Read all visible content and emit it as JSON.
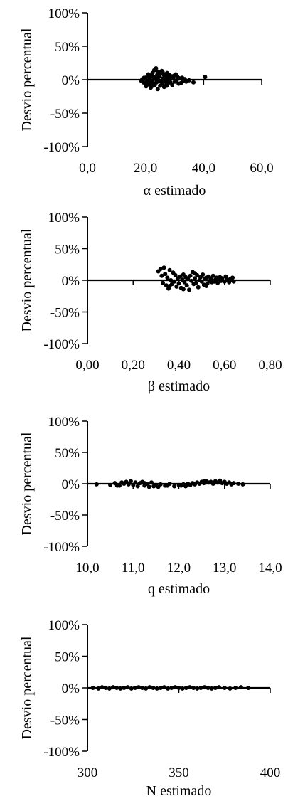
{
  "chart_data": [
    {
      "type": "scatter",
      "xlabel": "α estimado",
      "ylabel": "Desvio percentual",
      "xlim": [
        0,
        60
      ],
      "ylim": [
        -100,
        100
      ],
      "x_ticks": [
        "0,0",
        "20,0",
        "40,0",
        "60,0"
      ],
      "y_ticks": [
        "100%",
        "50%",
        "0%",
        "-50%",
        "-100%"
      ],
      "points": [
        [
          18.6,
          -2
        ],
        [
          18.9,
          1
        ],
        [
          19.2,
          -4
        ],
        [
          19.5,
          3
        ],
        [
          19.8,
          -6
        ],
        [
          20.0,
          2
        ],
        [
          20.2,
          -10
        ],
        [
          20.4,
          -1
        ],
        [
          20.6,
          5
        ],
        [
          20.8,
          -3
        ],
        [
          21.0,
          8
        ],
        [
          21.2,
          -7
        ],
        [
          21.4,
          0
        ],
        [
          21.6,
          4
        ],
        [
          21.8,
          -12
        ],
        [
          22.0,
          6
        ],
        [
          22.2,
          -2
        ],
        [
          22.4,
          10
        ],
        [
          22.6,
          -5
        ],
        [
          22.8,
          3
        ],
        [
          23.0,
          14
        ],
        [
          23.2,
          -8
        ],
        [
          23.4,
          1
        ],
        [
          23.6,
          17
        ],
        [
          23.8,
          -4
        ],
        [
          24.0,
          7
        ],
        [
          24.2,
          -14
        ],
        [
          24.4,
          12
        ],
        [
          24.6,
          -1
        ],
        [
          24.8,
          5
        ],
        [
          25.0,
          -9
        ],
        [
          25.2,
          9
        ],
        [
          25.4,
          -3
        ],
        [
          25.6,
          13
        ],
        [
          25.8,
          -6
        ],
        [
          26.0,
          2
        ],
        [
          26.2,
          8
        ],
        [
          26.4,
          -11
        ],
        [
          26.6,
          4
        ],
        [
          26.8,
          -2
        ],
        [
          27.0,
          6
        ],
        [
          27.2,
          -7
        ],
        [
          27.4,
          10
        ],
        [
          27.6,
          0
        ],
        [
          27.8,
          -5
        ],
        [
          28.0,
          3
        ],
        [
          28.3,
          7
        ],
        [
          28.6,
          -4
        ],
        [
          28.9,
          5
        ],
        [
          29.2,
          -8
        ],
        [
          29.5,
          2
        ],
        [
          29.8,
          6
        ],
        [
          30.1,
          -3
        ],
        [
          30.4,
          8
        ],
        [
          30.7,
          -1
        ],
        [
          31.0,
          4
        ],
        [
          31.4,
          -6
        ],
        [
          31.8,
          2
        ],
        [
          32.2,
          -5
        ],
        [
          32.6,
          3
        ],
        [
          33.0,
          -2
        ],
        [
          33.5,
          1
        ],
        [
          34.0,
          -3
        ],
        [
          35.0,
          -1
        ],
        [
          36.5,
          -4
        ],
        [
          40.5,
          4
        ],
        [
          21.5,
          -5
        ],
        [
          23.1,
          4
        ],
        [
          25.9,
          11
        ],
        [
          27.3,
          -9
        ],
        [
          24.1,
          2
        ],
        [
          22.7,
          -9
        ]
      ]
    },
    {
      "type": "scatter",
      "xlabel": "β estimado",
      "ylabel": "Desvio percentual",
      "xlim": [
        0,
        0.8
      ],
      "ylim": [
        -100,
        100
      ],
      "x_ticks": [
        "0,00",
        "0,20",
        "0,40",
        "0,60",
        "0,80"
      ],
      "y_ticks": [
        "100%",
        "50%",
        "0%",
        "-50%",
        "-100%"
      ],
      "points": [
        [
          0.31,
          14
        ],
        [
          0.32,
          18
        ],
        [
          0.325,
          7
        ],
        [
          0.33,
          -4
        ],
        [
          0.335,
          20
        ],
        [
          0.34,
          10
        ],
        [
          0.345,
          -8
        ],
        [
          0.35,
          4
        ],
        [
          0.355,
          -13
        ],
        [
          0.36,
          16
        ],
        [
          0.365,
          0
        ],
        [
          0.37,
          -6
        ],
        [
          0.375,
          12
        ],
        [
          0.38,
          -2
        ],
        [
          0.385,
          8
        ],
        [
          0.39,
          -10
        ],
        [
          0.395,
          3
        ],
        [
          0.4,
          -5
        ],
        [
          0.405,
          6
        ],
        [
          0.41,
          -12
        ],
        [
          0.415,
          1
        ],
        [
          0.42,
          9
        ],
        [
          0.425,
          -3
        ],
        [
          0.43,
          5
        ],
        [
          0.435,
          -8
        ],
        [
          0.44,
          2
        ],
        [
          0.445,
          -15
        ],
        [
          0.45,
          7
        ],
        [
          0.455,
          -1
        ],
        [
          0.46,
          13
        ],
        [
          0.465,
          -6
        ],
        [
          0.47,
          3
        ],
        [
          0.475,
          -4
        ],
        [
          0.48,
          8
        ],
        [
          0.485,
          -11
        ],
        [
          0.49,
          0
        ],
        [
          0.495,
          5
        ],
        [
          0.5,
          -2
        ],
        [
          0.505,
          9
        ],
        [
          0.51,
          -7
        ],
        [
          0.515,
          2
        ],
        [
          0.52,
          4
        ],
        [
          0.525,
          -5
        ],
        [
          0.53,
          6
        ],
        [
          0.535,
          -1
        ],
        [
          0.54,
          3
        ],
        [
          0.545,
          -3
        ],
        [
          0.55,
          7
        ],
        [
          0.555,
          -2
        ],
        [
          0.56,
          1
        ],
        [
          0.565,
          4
        ],
        [
          0.57,
          -4
        ],
        [
          0.575,
          2
        ],
        [
          0.58,
          5
        ],
        [
          0.585,
          -1
        ],
        [
          0.59,
          3
        ],
        [
          0.6,
          -2
        ],
        [
          0.605,
          6
        ],
        [
          0.61,
          1
        ],
        [
          0.62,
          -3
        ],
        [
          0.625,
          2
        ],
        [
          0.63,
          0
        ],
        [
          0.635,
          4
        ],
        [
          0.64,
          -2
        ],
        [
          0.36,
          -9
        ],
        [
          0.42,
          -14
        ],
        [
          0.47,
          11
        ],
        [
          0.52,
          -9
        ]
      ]
    },
    {
      "type": "scatter",
      "xlabel": "q estimado",
      "ylabel": "Desvio percentual",
      "xlim": [
        10,
        14
      ],
      "ylim": [
        -100,
        100
      ],
      "x_ticks": [
        "10,0",
        "11,0",
        "12,0",
        "13,0",
        "14,0"
      ],
      "y_ticks": [
        "100%",
        "50%",
        "0%",
        "-50%",
        "-100%"
      ],
      "points": [
        [
          10.2,
          -1
        ],
        [
          10.5,
          -2
        ],
        [
          10.6,
          1
        ],
        [
          10.7,
          -3
        ],
        [
          10.75,
          2
        ],
        [
          10.8,
          0
        ],
        [
          10.85,
          3
        ],
        [
          10.9,
          -1
        ],
        [
          10.95,
          4
        ],
        [
          11.0,
          -2
        ],
        [
          11.05,
          2
        ],
        [
          11.1,
          -4
        ],
        [
          11.15,
          1
        ],
        [
          11.2,
          3
        ],
        [
          11.25,
          -3
        ],
        [
          11.3,
          0
        ],
        [
          11.35,
          -5
        ],
        [
          11.4,
          2
        ],
        [
          11.45,
          -4
        ],
        [
          11.5,
          -2
        ],
        [
          11.55,
          -5
        ],
        [
          11.6,
          -1
        ],
        [
          11.7,
          -3
        ],
        [
          11.8,
          0
        ],
        [
          11.9,
          -4
        ],
        [
          12.0,
          -2
        ],
        [
          12.05,
          -3
        ],
        [
          12.1,
          -1
        ],
        [
          12.15,
          -4
        ],
        [
          12.2,
          0
        ],
        [
          12.25,
          -2
        ],
        [
          12.3,
          1
        ],
        [
          12.35,
          -1
        ],
        [
          12.4,
          2
        ],
        [
          12.45,
          0
        ],
        [
          12.5,
          3
        ],
        [
          12.55,
          1
        ],
        [
          12.6,
          4
        ],
        [
          12.65,
          2
        ],
        [
          12.7,
          3
        ],
        [
          12.75,
          0
        ],
        [
          12.8,
          4
        ],
        [
          12.85,
          2
        ],
        [
          12.9,
          5
        ],
        [
          12.95,
          1
        ],
        [
          13.0,
          3
        ],
        [
          13.05,
          0
        ],
        [
          13.1,
          2
        ],
        [
          13.15,
          -1
        ],
        [
          13.2,
          1
        ],
        [
          13.3,
          0
        ],
        [
          13.4,
          -1
        ],
        [
          10.65,
          -3
        ],
        [
          11.25,
          1
        ],
        [
          11.75,
          -3
        ],
        [
          12.55,
          4
        ]
      ]
    },
    {
      "type": "scatter",
      "xlabel": "N estimado",
      "ylabel": "Desvio percentual",
      "xlim": [
        300,
        400
      ],
      "ylim": [
        -100,
        100
      ],
      "x_ticks": [
        "300",
        "350",
        "400"
      ],
      "y_ticks": [
        "100%",
        "50%",
        "0%",
        "-50%",
        "-100%"
      ],
      "points": [
        [
          303,
          0
        ],
        [
          306,
          -1
        ],
        [
          308,
          1
        ],
        [
          310,
          0
        ],
        [
          312,
          -1
        ],
        [
          314,
          1
        ],
        [
          316,
          0
        ],
        [
          318,
          -1
        ],
        [
          320,
          0
        ],
        [
          322,
          1
        ],
        [
          324,
          -1
        ],
        [
          326,
          0
        ],
        [
          328,
          1
        ],
        [
          330,
          0
        ],
        [
          332,
          -1
        ],
        [
          334,
          1
        ],
        [
          336,
          0
        ],
        [
          338,
          -1
        ],
        [
          340,
          0
        ],
        [
          342,
          1
        ],
        [
          344,
          -1
        ],
        [
          346,
          0
        ],
        [
          348,
          1
        ],
        [
          350,
          0
        ],
        [
          352,
          -1
        ],
        [
          354,
          0
        ],
        [
          356,
          1
        ],
        [
          358,
          0
        ],
        [
          360,
          -1
        ],
        [
          362,
          0
        ],
        [
          364,
          1
        ],
        [
          366,
          0
        ],
        [
          368,
          -1
        ],
        [
          370,
          0
        ],
        [
          372,
          1
        ],
        [
          375,
          0
        ],
        [
          378,
          -1
        ],
        [
          381,
          0
        ],
        [
          384,
          1
        ],
        [
          388,
          0
        ]
      ]
    }
  ]
}
